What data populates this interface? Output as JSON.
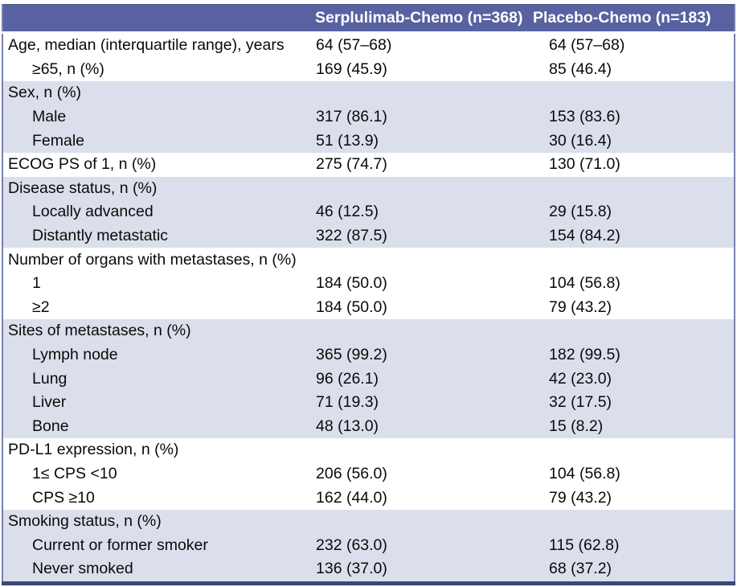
{
  "table": {
    "columns": [
      "",
      "Serplulimab-Chemo (n=368)",
      "Placebo-Chemo (n=183)"
    ],
    "rows": [
      {
        "label": "Age, median (interquartile range), years",
        "indent": false,
        "serplulimab": "64 (57–68)",
        "placebo": "64 (57–68)",
        "shaded": false
      },
      {
        "label": "≥65, n (%)",
        "indent": true,
        "serplulimab": "169 (45.9)",
        "placebo": "85 (46.4)",
        "shaded": false
      },
      {
        "label": "Sex, n (%)",
        "indent": false,
        "serplulimab": "",
        "placebo": "",
        "shaded": true
      },
      {
        "label": "Male",
        "indent": true,
        "serplulimab": "317 (86.1)",
        "placebo": "153 (83.6)",
        "shaded": true
      },
      {
        "label": "Female",
        "indent": true,
        "serplulimab": "51 (13.9)",
        "placebo": "30 (16.4)",
        "shaded": true
      },
      {
        "label": "ECOG PS of 1, n (%)",
        "indent": false,
        "serplulimab": "275 (74.7)",
        "placebo": "130 (71.0)",
        "shaded": false
      },
      {
        "label": "Disease status, n (%)",
        "indent": false,
        "serplulimab": "",
        "placebo": "",
        "shaded": true
      },
      {
        "label": "Locally advanced",
        "indent": true,
        "serplulimab": "46 (12.5)",
        "placebo": "29 (15.8)",
        "shaded": true
      },
      {
        "label": "Distantly metastatic",
        "indent": true,
        "serplulimab": "322 (87.5)",
        "placebo": "154 (84.2)",
        "shaded": true
      },
      {
        "label": "Number of organs with metastases, n (%)",
        "indent": false,
        "serplulimab": "",
        "placebo": "",
        "shaded": false
      },
      {
        "label": "1",
        "indent": true,
        "serplulimab": "184 (50.0)",
        "placebo": "104 (56.8)",
        "shaded": false
      },
      {
        "label": "≥2",
        "indent": true,
        "serplulimab": "184 (50.0)",
        "placebo": "79 (43.2)",
        "shaded": false
      },
      {
        "label": "Sites of metastases, n (%)",
        "indent": false,
        "serplulimab": "",
        "placebo": "",
        "shaded": true
      },
      {
        "label": "Lymph node",
        "indent": true,
        "serplulimab": "365 (99.2)",
        "placebo": "182 (99.5)",
        "shaded": true
      },
      {
        "label": "Lung",
        "indent": true,
        "serplulimab": "96 (26.1)",
        "placebo": "42 (23.0)",
        "shaded": true
      },
      {
        "label": "Liver",
        "indent": true,
        "serplulimab": "71 (19.3)",
        "placebo": "32 (17.5)",
        "shaded": true
      },
      {
        "label": "Bone",
        "indent": true,
        "serplulimab": "48 (13.0)",
        "placebo": "15 (8.2)",
        "shaded": true
      },
      {
        "label": "PD-L1 expression, n (%)",
        "indent": false,
        "serplulimab": "",
        "placebo": "",
        "shaded": false
      },
      {
        "label": "1≤ CPS <10",
        "indent": true,
        "serplulimab": "206 (56.0)",
        "placebo": "104 (56.8)",
        "shaded": false
      },
      {
        "label": "CPS ≥10",
        "indent": true,
        "serplulimab": "162 (44.0)",
        "placebo": "79 (43.2)",
        "shaded": false
      },
      {
        "label": "Smoking status, n (%)",
        "indent": false,
        "serplulimab": "",
        "placebo": "",
        "shaded": true
      },
      {
        "label": "Current or former smoker",
        "indent": true,
        "serplulimab": "232 (63.0)",
        "placebo": "115 (62.8)",
        "shaded": true
      },
      {
        "label": "Never smoked",
        "indent": true,
        "serplulimab": "136 (37.0)",
        "placebo": "68 (37.2)",
        "shaded": true
      }
    ],
    "colors": {
      "header_bg": "#5862A0",
      "shaded_row_bg": "#DBDFEB",
      "border_dark": "#3C4678",
      "border_side": "#7880AE",
      "text": "#0A0A0A",
      "header_text": "#FFFFFF"
    }
  }
}
